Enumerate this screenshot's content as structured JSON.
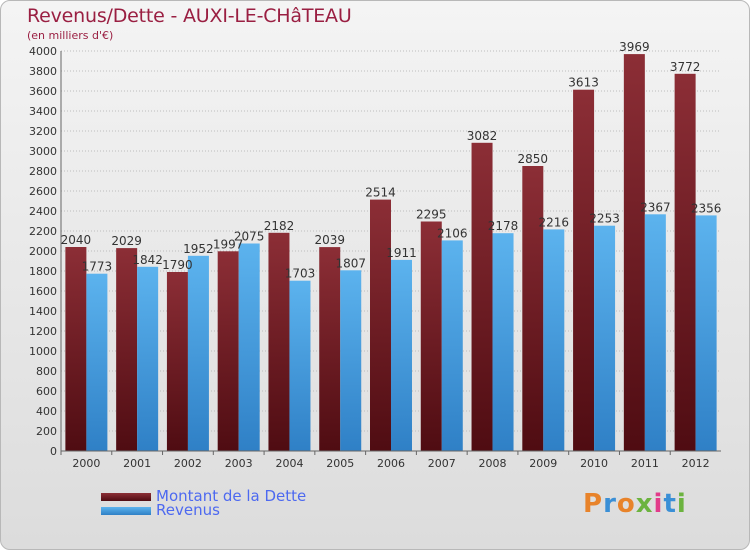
{
  "title": "Revenus/Dette - AUXI-LE-CHâTEAU",
  "subtitle": "(en milliers d'€)",
  "legend": [
    {
      "label": "Montant de la Dette",
      "color": "#6b1d24"
    },
    {
      "label": "Revenus",
      "color": "#4a9fe0"
    }
  ],
  "logo": {
    "text": "Proxiti",
    "colors": [
      "#e8832a",
      "#3a8fd6",
      "#e8832a",
      "#6cb33f",
      "#e23b8a",
      "#3a8fd6",
      "#6cb33f"
    ]
  },
  "chart_data": {
    "type": "bar",
    "categories": [
      "2000",
      "2001",
      "2002",
      "2003",
      "2004",
      "2005",
      "2006",
      "2007",
      "2008",
      "2009",
      "2010",
      "2011",
      "2012"
    ],
    "series": [
      {
        "name": "Montant de la Dette",
        "values": [
          2040,
          2029,
          1790,
          1997,
          2182,
          2039,
          2514,
          2295,
          3082,
          2850,
          3613,
          3969,
          3772
        ],
        "labels": [
          "2040",
          "2029",
          "1790",
          "1997",
          "2182",
          "2039",
          "2514",
          "2295",
          "3082",
          "2850",
          "3613",
          "3969",
          "3772"
        ]
      },
      {
        "name": "Revenus",
        "values": [
          1773,
          1842,
          1952,
          2075,
          1703,
          1807,
          1911,
          2106,
          2178,
          2216,
          2253,
          2367,
          2356
        ],
        "labels": [
          "1773",
          "1842",
          "1952",
          "2075",
          "1703",
          "1807",
          "1911",
          "2106",
          "2178",
          "2216",
          "2253",
          "2367",
          "2356"
        ]
      }
    ],
    "ylim": [
      0,
      4000
    ],
    "yticks": [
      0,
      200,
      400,
      600,
      800,
      1000,
      1200,
      1400,
      1600,
      1800,
      2000,
      2200,
      2400,
      2600,
      2800,
      3000,
      3200,
      3400,
      3600,
      3800,
      4000
    ],
    "grid": true,
    "legend_position": "bottom-left"
  }
}
